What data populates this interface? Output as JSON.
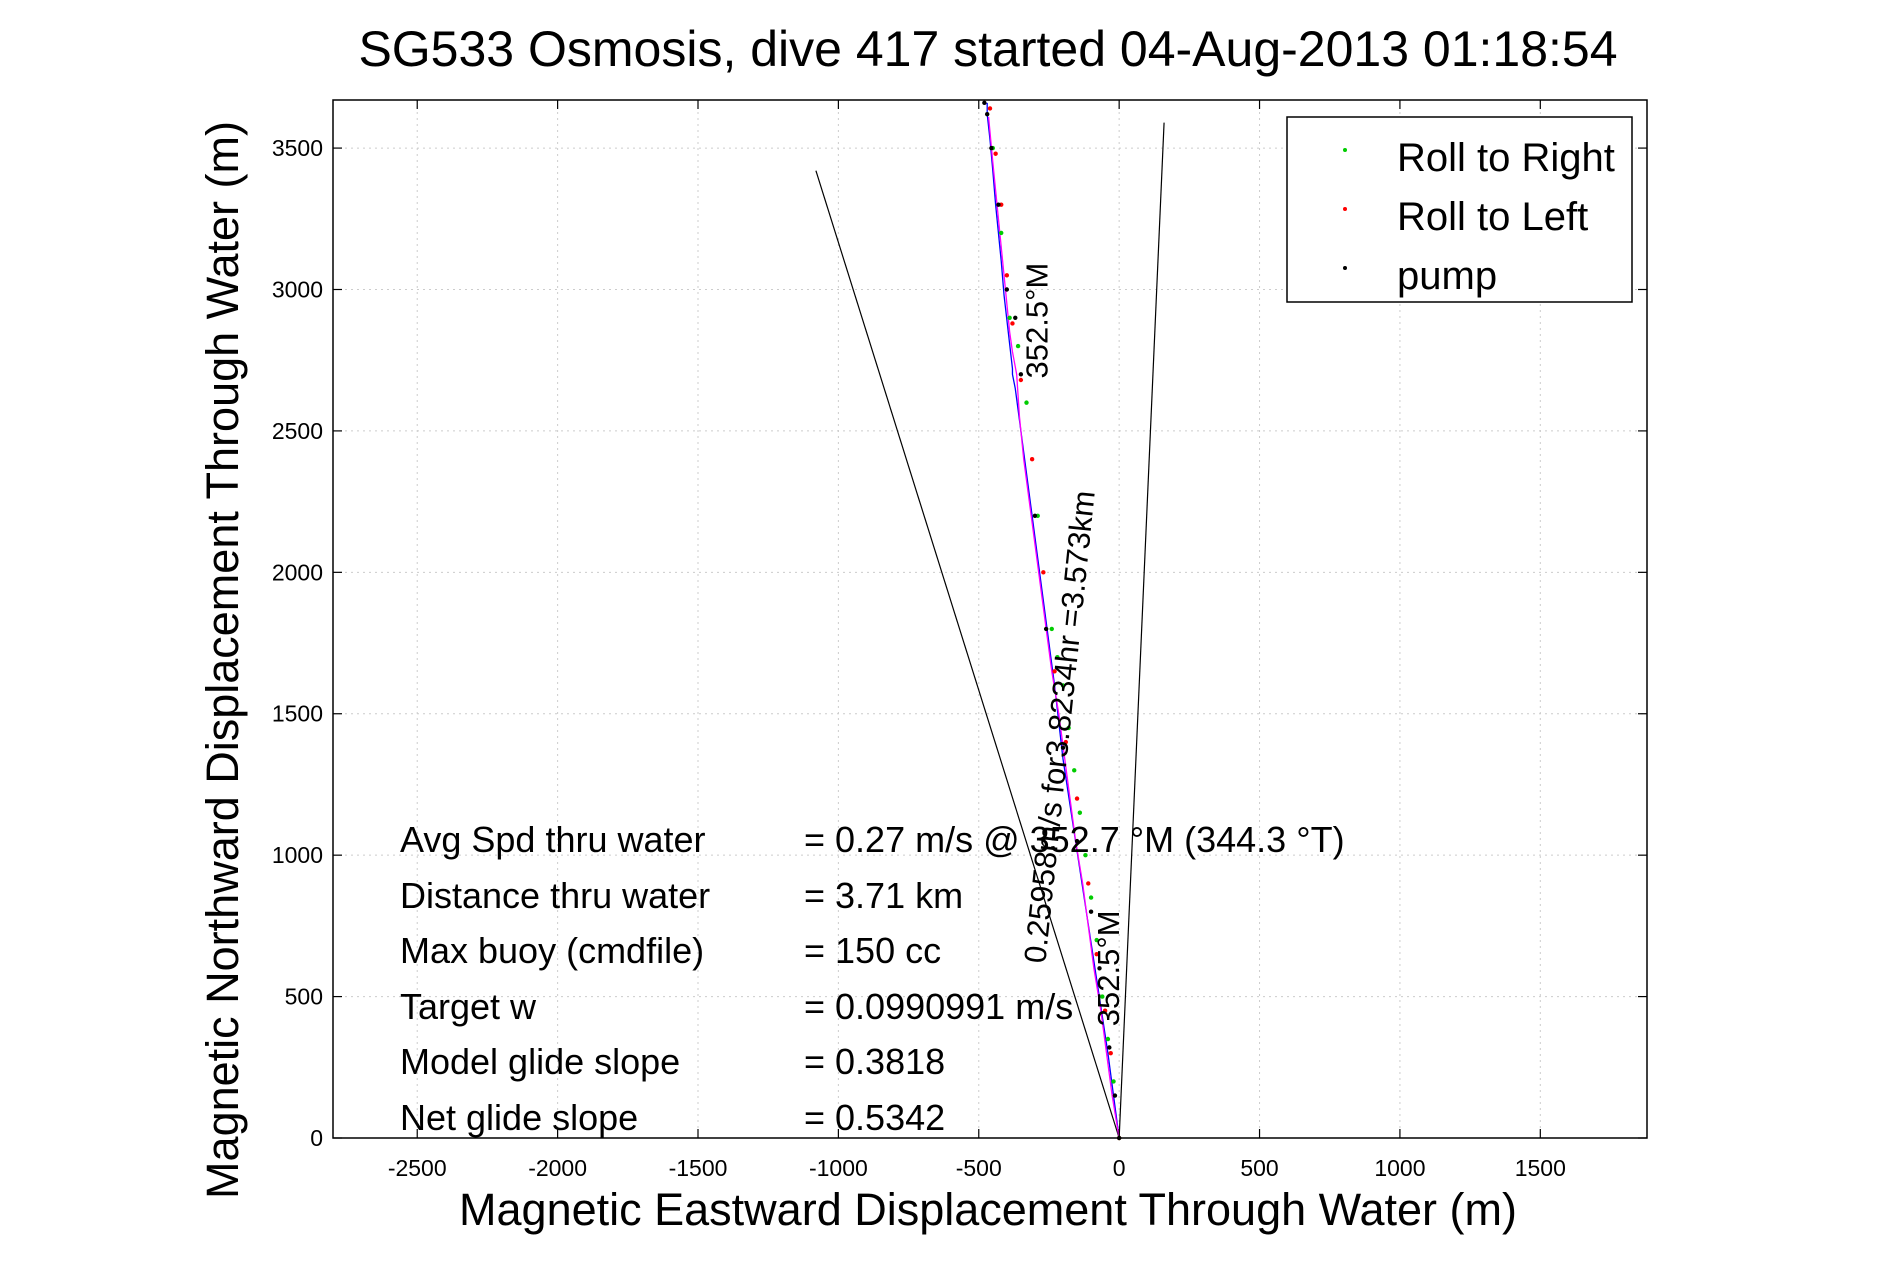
{
  "chart_data": {
    "type": "line",
    "title": "SG533 Osmosis, dive 417 started 04-Aug-2013 01:18:54",
    "xlabel": "Magnetic Eastward Displacement Through Water (m)",
    "ylabel": "Magnetic Northward Displacement Through Water (m)",
    "xlim": [
      -2800,
      1880
    ],
    "ylim": [
      0,
      3670
    ],
    "xticks": [
      -2500,
      -2000,
      -1500,
      -1000,
      -500,
      0,
      500,
      1000,
      1500
    ],
    "yticks": [
      0,
      500,
      1000,
      1500,
      2000,
      2500,
      3000,
      3500
    ],
    "grid": true,
    "legend": {
      "placement": "top-right",
      "entries": [
        {
          "label": "Roll to Right",
          "color": "#00cc00"
        },
        {
          "label": "Roll to Left",
          "color": "#ff0000"
        },
        {
          "label": "pump",
          "color": "#000000"
        }
      ]
    },
    "colors": {
      "track_dive": "#0000ff",
      "track_climb": "#ff00ff",
      "roll_right": "#00cc00",
      "roll_left": "#ff0000",
      "pump": "#000000",
      "guide_lines": "#000000",
      "grid": "#cccccc"
    },
    "series": [
      {
        "name": "Roll to Right",
        "x": [
          0,
          -20,
          -40,
          -60,
          -80,
          -100,
          -120,
          -140,
          -160,
          -180,
          -200,
          -220,
          -240,
          -290,
          -330,
          -360,
          -390,
          -420,
          -450
        ],
        "y": [
          0,
          200,
          350,
          500,
          700,
          850,
          1000,
          1150,
          1300,
          1450,
          1600,
          1700,
          1800,
          2200,
          2600,
          2800,
          2900,
          3200,
          3500
        ]
      },
      {
        "name": "Roll to Left",
        "x": [
          0,
          -30,
          -50,
          -80,
          -110,
          -150,
          -190,
          -230,
          -270,
          -310,
          -350,
          -380,
          -400,
          -420,
          -440,
          -460
        ],
        "y": [
          0,
          300,
          450,
          650,
          900,
          1200,
          1400,
          1650,
          2000,
          2400,
          2680,
          2880,
          3050,
          3300,
          3480,
          3640
        ]
      },
      {
        "name": "pump",
        "x": [
          0,
          -15,
          -35,
          -70,
          -100,
          -150,
          -200,
          -260,
          -300,
          -350,
          -370,
          -400,
          -430,
          -455,
          -470,
          -480
        ],
        "y": [
          0,
          150,
          320,
          600,
          800,
          1050,
          1380,
          1800,
          2200,
          2700,
          2900,
          3000,
          3300,
          3500,
          3620,
          3660
        ]
      },
      {
        "x": [
          0,
          -20,
          -40,
          -60,
          -80,
          -100,
          -120,
          -140,
          -160,
          -180,
          -200,
          -215,
          -230,
          -250,
          -270,
          -290,
          -310,
          -330,
          -350,
          -370,
          -380,
          -380,
          -395,
          -410,
          -420,
          -430,
          -440,
          -450,
          -460,
          -470,
          -470
        ],
        "y": [
          0,
          150,
          300,
          430,
          560,
          690,
          820,
          950,
          1080,
          1210,
          1340,
          1470,
          1600,
          1750,
          1900,
          2050,
          2200,
          2350,
          2500,
          2650,
          2700,
          2720,
          2850,
          2980,
          3100,
          3200,
          3300,
          3420,
          3530,
          3620,
          3660
        ]
      },
      {
        "x": [
          0,
          -25,
          -45,
          -65,
          -90,
          -110,
          -130,
          -155,
          -175,
          -195,
          -215,
          -240,
          -260,
          -280,
          -300,
          -320,
          -340,
          -355,
          -365,
          -380,
          -390,
          -405,
          -420,
          -435,
          -450,
          -465
        ],
        "y": [
          0,
          150,
          300,
          450,
          600,
          750,
          900,
          1050,
          1200,
          1350,
          1500,
          1650,
          1800,
          1950,
          2100,
          2250,
          2400,
          2550,
          2700,
          2780,
          2850,
          3000,
          3150,
          3300,
          3450,
          3610
        ]
      }
    ],
    "guide_lines": [
      {
        "x": [
          0,
          -1080
        ],
        "y": [
          0,
          3420
        ]
      },
      {
        "x": [
          0,
          160
        ],
        "y": [
          0,
          3590
        ]
      }
    ],
    "annotations": [
      {
        "text": "352.5°M",
        "x": -255,
        "y": 2890,
        "rotation": -90
      },
      {
        "text": "0.25958m/s for3.8234hr =3.573km",
        "x": -175,
        "y": 1450,
        "rotation": -84
      },
      {
        "text": "352.5°M",
        "x": 0,
        "y": 600,
        "rotation": -90
      }
    ],
    "stats": [
      {
        "label": "Avg Spd thru water",
        "value": "=  0.27 m/s @ 352.7 °M (344.3 °T)"
      },
      {
        "label": "Distance thru water",
        "value": "=  3.71 km"
      },
      {
        "label": "Max buoy (cmdfile)",
        "value": "= 150 cc"
      },
      {
        "label": "Target w",
        "value": "= 0.0990991 m/s"
      },
      {
        "label": "Model glide slope",
        "value": "= 0.3818"
      },
      {
        "label": "Net glide slope",
        "value": "= 0.5342"
      }
    ]
  }
}
